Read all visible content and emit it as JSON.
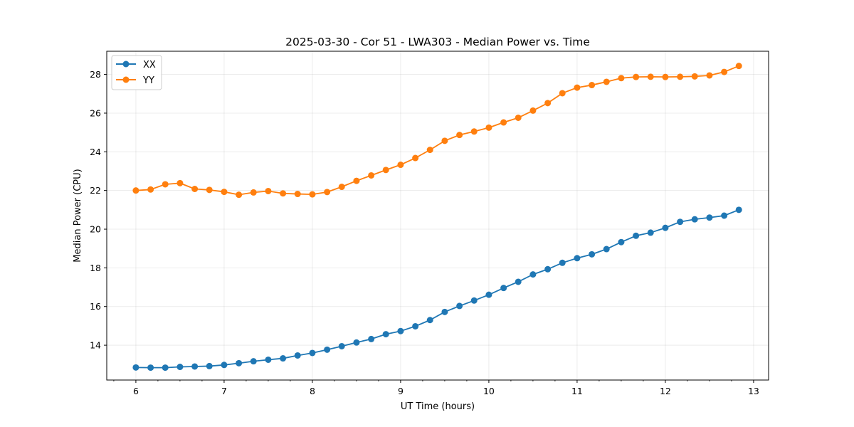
{
  "chart_data": {
    "type": "line",
    "title": "2025-03-30 - Cor 51 - LWA303 - Median Power vs. Time",
    "xlabel": "UT Time (hours)",
    "ylabel": "Median Power (CPU)",
    "xlim": [
      5.67,
      13.17
    ],
    "ylim": [
      12.2,
      29.2
    ],
    "xticks": [
      6,
      7,
      8,
      9,
      10,
      11,
      12,
      13
    ],
    "yticks": [
      14,
      16,
      18,
      20,
      22,
      24,
      26,
      28
    ],
    "x_minor_step": 0.25,
    "grid": true,
    "legend_position": "top-left",
    "x": [
      6.0,
      6.167,
      6.333,
      6.5,
      6.667,
      6.833,
      7.0,
      7.167,
      7.333,
      7.5,
      7.667,
      7.833,
      8.0,
      8.167,
      8.333,
      8.5,
      8.667,
      8.833,
      9.0,
      9.167,
      9.333,
      9.5,
      9.667,
      9.833,
      10.0,
      10.167,
      10.333,
      10.5,
      10.667,
      10.833,
      11.0,
      11.167,
      11.333,
      11.5,
      11.667,
      11.833,
      12.0,
      12.167,
      12.333,
      12.5,
      12.667,
      12.833
    ],
    "series": [
      {
        "name": "XX",
        "color": "#1f77b4",
        "values": [
          12.85,
          12.84,
          12.84,
          12.88,
          12.9,
          12.92,
          12.98,
          13.07,
          13.17,
          13.25,
          13.32,
          13.47,
          13.6,
          13.77,
          13.95,
          14.14,
          14.32,
          14.57,
          14.73,
          14.98,
          15.3,
          15.72,
          16.03,
          16.31,
          16.61,
          16.96,
          17.28,
          17.66,
          17.93,
          18.26,
          18.5,
          18.7,
          18.97,
          19.33,
          19.66,
          19.82,
          20.07,
          20.38,
          20.51,
          20.6,
          20.7,
          21.0
        ]
      },
      {
        "name": "YY",
        "color": "#ff7f0e",
        "values": [
          22.0,
          22.05,
          22.32,
          22.38,
          22.08,
          22.03,
          21.93,
          21.78,
          21.9,
          21.97,
          21.85,
          21.82,
          21.8,
          21.92,
          22.19,
          22.5,
          22.78,
          23.06,
          23.33,
          23.68,
          24.1,
          24.57,
          24.87,
          25.05,
          25.25,
          25.52,
          25.76,
          26.13,
          26.52,
          27.03,
          27.32,
          27.45,
          27.62,
          27.81,
          27.87,
          27.88,
          27.87,
          27.88,
          27.9,
          27.95,
          28.13,
          28.44
        ]
      }
    ]
  }
}
